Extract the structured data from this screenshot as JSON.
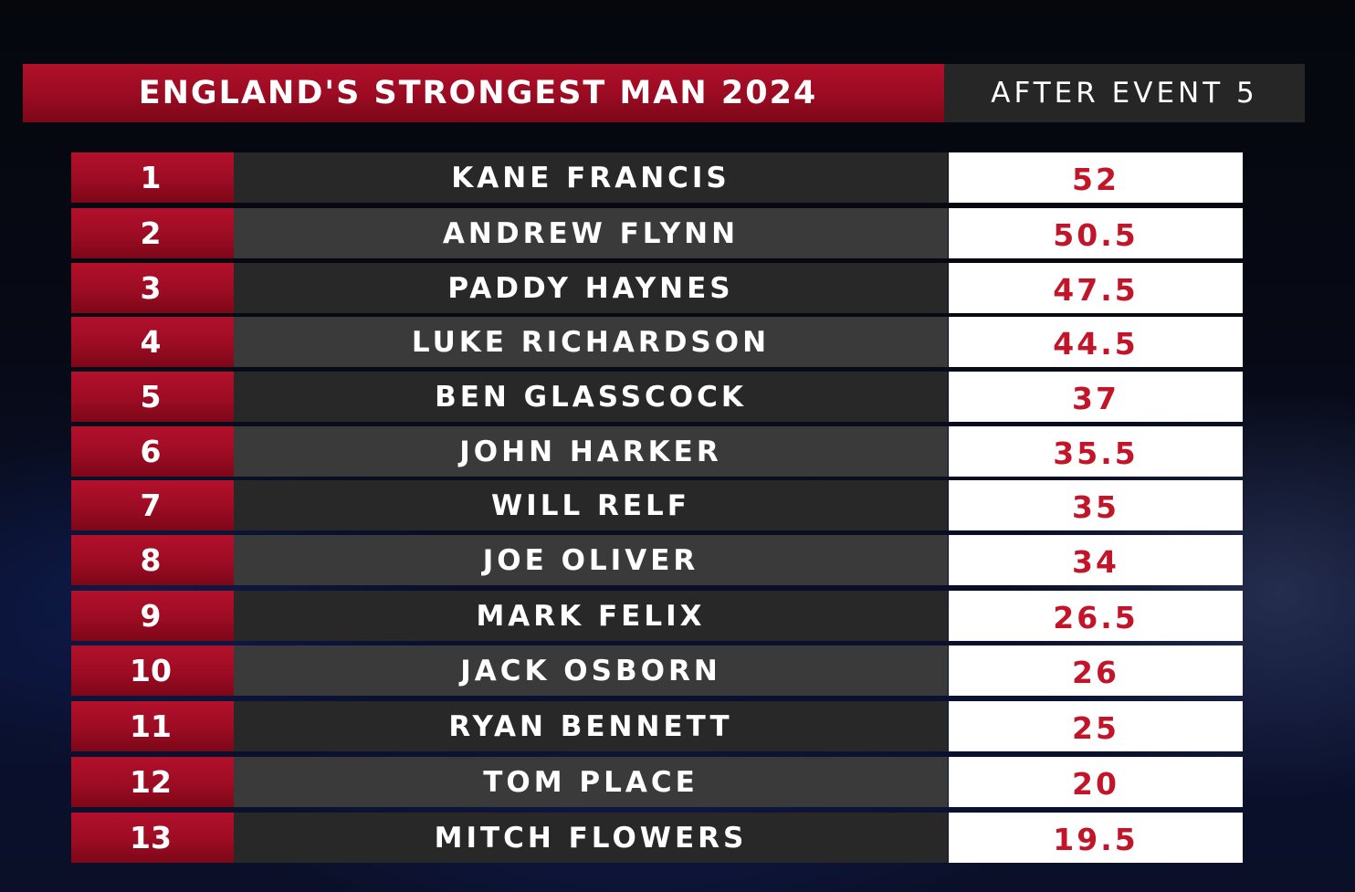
{
  "header": {
    "title": "ENGLAND'S STRONGEST MAN 2024",
    "event": "AFTER EVENT 5"
  },
  "standings": [
    {
      "rank": "1",
      "name": "KANE FRANCIS",
      "points": "52"
    },
    {
      "rank": "2",
      "name": "ANDREW FLYNN",
      "points": "50.5"
    },
    {
      "rank": "3",
      "name": "PADDY HAYNES",
      "points": "47.5"
    },
    {
      "rank": "4",
      "name": "LUKE RICHARDSON",
      "points": "44.5"
    },
    {
      "rank": "5",
      "name": "BEN GLASSCOCK",
      "points": "37"
    },
    {
      "rank": "6",
      "name": "JOHN HARKER",
      "points": "35.5"
    },
    {
      "rank": "7",
      "name": "WILL RELF",
      "points": "35"
    },
    {
      "rank": "8",
      "name": "JOE OLIVER",
      "points": "34"
    },
    {
      "rank": "9",
      "name": "MARK FELIX",
      "points": "26.5"
    },
    {
      "rank": "10",
      "name": "JACK OSBORN",
      "points": "26"
    },
    {
      "rank": "11",
      "name": "RYAN BENNETT",
      "points": "25"
    },
    {
      "rank": "12",
      "name": "TOM PLACE",
      "points": "20"
    },
    {
      "rank": "13",
      "name": "MITCH FLOWERS",
      "points": "19.5"
    }
  ],
  "colors": {
    "accent_red": "#a00c25",
    "score_text": "#c3152a",
    "dark_row": "#282828",
    "light_row": "#3a3a3a"
  }
}
